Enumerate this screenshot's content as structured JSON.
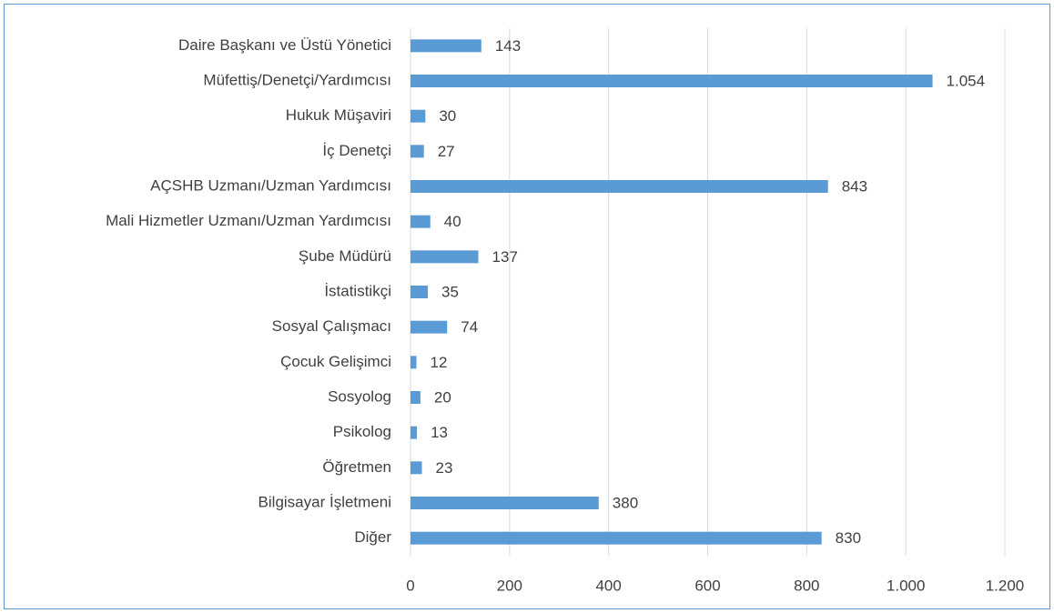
{
  "chart_data": {
    "type": "bar",
    "orientation": "horizontal",
    "categories": [
      "Daire Başkanı ve Üstü Yönetici",
      "Müfettiş/Denetçi/Yardımcısı",
      "Hukuk Müşaviri",
      "İç Denetçi",
      "AÇSHB Uzmanı/Uzman Yardımcısı",
      "Mali Hizmetler Uzmanı/Uzman Yardımcısı",
      "Şube Müdürü",
      "İstatistikçi",
      "Sosyal Çalışmacı",
      "Çocuk Gelişimci",
      "Sosyolog",
      "Psikolog",
      "Öğretmen",
      "Bilgisayar İşletmeni",
      "Diğer"
    ],
    "values": [
      143,
      1054,
      30,
      27,
      843,
      40,
      137,
      35,
      74,
      12,
      20,
      13,
      23,
      380,
      830
    ],
    "value_labels": [
      "143",
      "1.054",
      "30",
      "27",
      "843",
      "40",
      "137",
      "35",
      "74",
      "12",
      "20",
      "13",
      "23",
      "380",
      "830"
    ],
    "color": "#5b9bd5",
    "xlim": [
      0,
      1200
    ],
    "xticks": [
      0,
      200,
      400,
      600,
      800,
      {
        "value": 1000,
        "label": "1.000"
      },
      {
        "value": 1200,
        "label": "1.200"
      }
    ],
    "grid": true
  }
}
